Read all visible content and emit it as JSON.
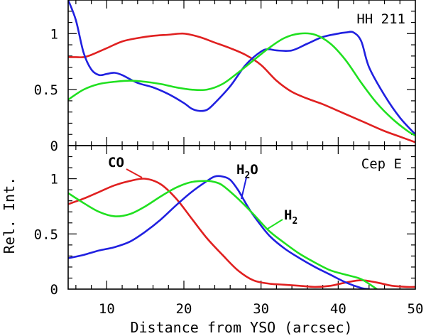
{
  "chart_data": {
    "type": "line",
    "shared_x": {
      "label": "Distance from YSO (arcsec)",
      "range": [
        5,
        50
      ],
      "major_ticks": [
        10,
        20,
        30,
        40,
        50
      ],
      "minor_step": 2
    },
    "ylabel": "Rel. Int.",
    "panels": [
      {
        "label": "HH 211",
        "yrange": [
          0,
          1.3
        ],
        "y_major_ticks": [
          0,
          0.5,
          1
        ],
        "y_tick_labels": [
          "0",
          "0.5",
          "1"
        ],
        "y_minor_step": 0.1,
        "series": [
          {
            "name": "CO",
            "color": "#e02020",
            "x": [
              5,
              6,
              7,
              8,
              10,
              12,
              14,
              16,
              18,
              20,
              22,
              24,
              26,
              28,
              30,
              32,
              34,
              36,
              38,
              40,
              42,
              44,
              46,
              48,
              50
            ],
            "y": [
              0.79,
              0.79,
              0.79,
              0.81,
              0.87,
              0.93,
              0.96,
              0.98,
              0.99,
              1.0,
              0.97,
              0.92,
              0.87,
              0.81,
              0.72,
              0.58,
              0.48,
              0.42,
              0.37,
              0.31,
              0.25,
              0.19,
              0.13,
              0.08,
              0.03
            ]
          },
          {
            "name": "H2O",
            "color": "#2020e0",
            "x": [
              5,
              6,
              7,
              8,
              9,
              10,
              11,
              12,
              14,
              16,
              18,
              20,
              21,
              22,
              23,
              24,
              26,
              28,
              30,
              31,
              32,
              34,
              36,
              38,
              40,
              41,
              42,
              43,
              44,
              46,
              48,
              50
            ],
            "y": [
              1.3,
              1.12,
              0.83,
              0.68,
              0.63,
              0.64,
              0.65,
              0.63,
              0.56,
              0.52,
              0.46,
              0.38,
              0.33,
              0.31,
              0.32,
              0.38,
              0.53,
              0.72,
              0.84,
              0.86,
              0.85,
              0.85,
              0.91,
              0.97,
              1.0,
              1.01,
              1.01,
              0.93,
              0.7,
              0.45,
              0.25,
              0.1
            ]
          },
          {
            "name": "H2",
            "color": "#20e020",
            "x": [
              5,
              7,
              9,
              11,
              13,
              15,
              17,
              19,
              21,
              23,
              25,
              27,
              29,
              31,
              33,
              35,
              37,
              39,
              41,
              43,
              45,
              47,
              49,
              50
            ],
            "y": [
              0.41,
              0.5,
              0.55,
              0.57,
              0.58,
              0.57,
              0.55,
              0.52,
              0.5,
              0.5,
              0.55,
              0.65,
              0.76,
              0.87,
              0.96,
              1.0,
              0.99,
              0.91,
              0.76,
              0.56,
              0.38,
              0.24,
              0.13,
              0.09
            ]
          }
        ]
      },
      {
        "label": "Cep E",
        "yrange": [
          0,
          1.3
        ],
        "y_major_ticks": [
          0,
          0.5,
          1
        ],
        "y_tick_labels": [
          "0",
          "0.5",
          "1"
        ],
        "y_minor_step": 0.1,
        "series": [
          {
            "name": "CO",
            "color": "#e02020",
            "x": [
              5,
              7,
              9,
              11,
              13,
              15,
              17,
              19,
              21,
              23,
              25,
              27,
              29,
              31,
              33,
              35,
              37,
              39,
              41,
              43,
              45,
              47,
              49,
              50
            ],
            "y": [
              0.77,
              0.82,
              0.88,
              0.94,
              0.98,
              1.0,
              0.95,
              0.82,
              0.64,
              0.46,
              0.31,
              0.17,
              0.08,
              0.05,
              0.04,
              0.03,
              0.02,
              0.03,
              0.06,
              0.08,
              0.06,
              0.03,
              0.02,
              0.02
            ]
          },
          {
            "name": "H2O",
            "color": "#2020e0",
            "x": [
              5,
              7,
              9,
              11,
              13,
              15,
              17,
              19,
              21,
              23,
              24,
              25,
              26,
              27,
              28,
              29,
              31,
              33,
              35,
              37,
              39,
              41,
              43,
              44
            ],
            "y": [
              0.28,
              0.31,
              0.35,
              0.38,
              0.43,
              0.52,
              0.63,
              0.76,
              0.88,
              0.98,
              1.02,
              1.02,
              0.99,
              0.9,
              0.78,
              0.67,
              0.49,
              0.37,
              0.28,
              0.2,
              0.13,
              0.06,
              0.01,
              0.0
            ]
          },
          {
            "name": "H2",
            "color": "#20e020",
            "x": [
              5,
              7,
              9,
              11,
              13,
              15,
              17,
              19,
              21,
              23,
              24,
              25,
              27,
              29,
              31,
              33,
              35,
              37,
              39,
              41,
              43,
              45
            ],
            "y": [
              0.87,
              0.78,
              0.7,
              0.66,
              0.68,
              0.75,
              0.84,
              0.92,
              0.97,
              0.98,
              0.97,
              0.94,
              0.82,
              0.68,
              0.53,
              0.42,
              0.32,
              0.24,
              0.17,
              0.13,
              0.09,
              0.0
            ]
          }
        ],
        "annotations": [
          {
            "text": "CO",
            "color": "#e02020"
          },
          {
            "text": "H",
            "sub": "2",
            "tail": "O",
            "color": "#2020e0"
          },
          {
            "text": "H",
            "sub": "2",
            "tail": "",
            "color": "#20e020"
          }
        ]
      }
    ]
  }
}
